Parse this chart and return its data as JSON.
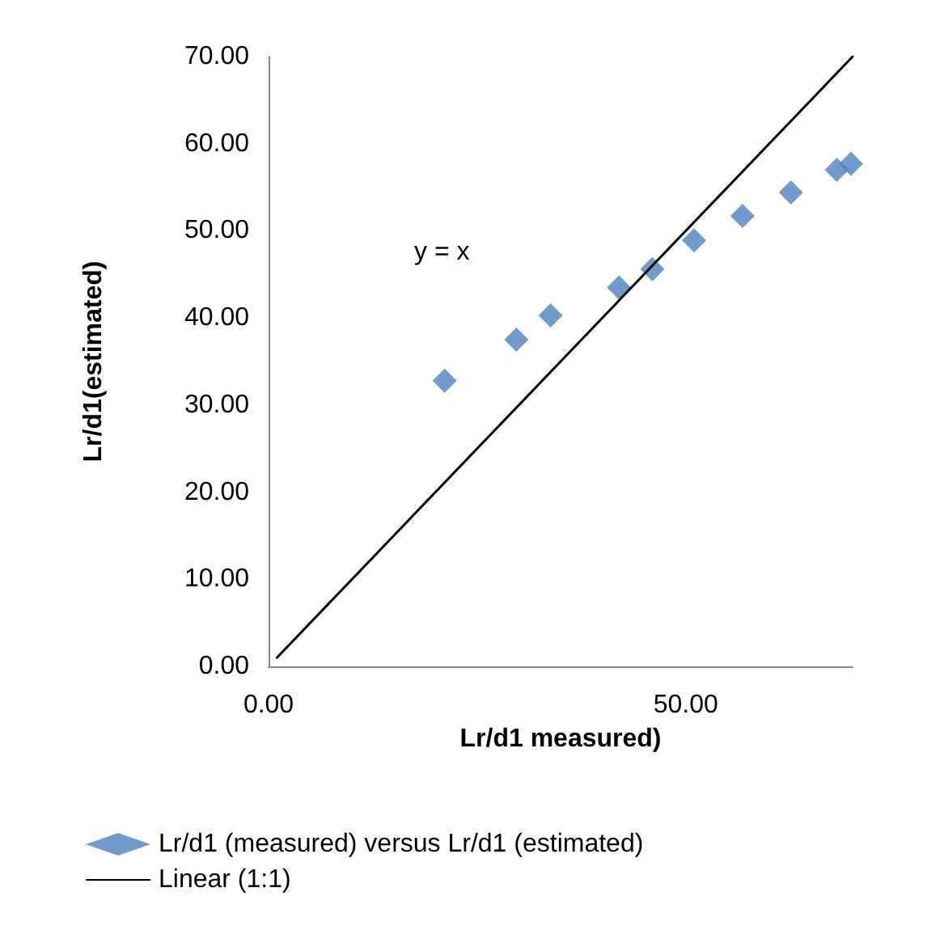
{
  "chart_data": {
    "type": "scatter",
    "xlabel": "Lr/d1 measured)",
    "ylabel": "Lr/d1(estimated)",
    "annotations": [
      "y = x"
    ],
    "series": [
      {
        "name": "Lr/d1 (measured) versus Lr/d1 (estimated)",
        "color": "#4f81bd",
        "marker": "diamond",
        "x": [
          21.1,
          29.7,
          33.8,
          42.0,
          46.0,
          51.0,
          56.8,
          62.6,
          68.1,
          69.8
        ],
        "values": [
          32.8,
          37.5,
          40.3,
          43.5,
          45.6,
          48.9,
          51.7,
          54.4,
          57.0,
          57.7
        ]
      },
      {
        "name": "Linear (1:1)",
        "type": "line",
        "color": "#000000",
        "marker": "none",
        "line_style": "solid",
        "x": [
          1,
          70
        ],
        "values": [
          1,
          70
        ]
      }
    ],
    "xlim": [
      0,
      70
    ],
    "ylim": [
      0,
      70
    ],
    "xticks": [
      {
        "value": 0,
        "label": "0.00"
      },
      {
        "value": 50,
        "label": "50.00"
      }
    ],
    "yticks": [
      {
        "value": 0,
        "label": "0.00"
      },
      {
        "value": 10,
        "label": "10.00"
      },
      {
        "value": 20,
        "label": "20.00"
      },
      {
        "value": 30,
        "label": "30.00"
      },
      {
        "value": 40,
        "label": "40.00"
      },
      {
        "value": 50,
        "label": "50.00"
      },
      {
        "value": 60,
        "label": "60.00"
      },
      {
        "value": 70,
        "label": "70.00"
      }
    ],
    "grid": false,
    "legend": "bottom"
  }
}
